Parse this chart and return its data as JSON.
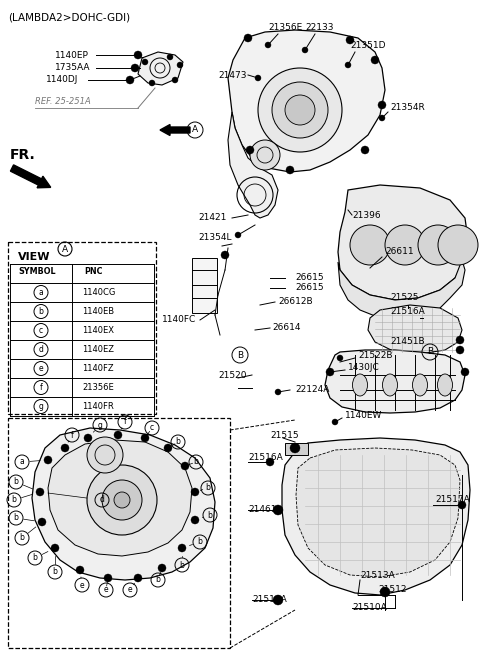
{
  "bg_color": "#ffffff",
  "line_color": "#000000",
  "gray_color": "#777777",
  "fig_width": 4.8,
  "fig_height": 6.6,
  "dpi": 100,
  "title": "(LAMBDA2>DOHC-GDI)",
  "view_rows": [
    [
      "a",
      "1140CG"
    ],
    [
      "b",
      "1140EB"
    ],
    [
      "c",
      "1140EX"
    ],
    [
      "d",
      "1140EZ"
    ],
    [
      "e",
      "1140FZ"
    ],
    [
      "f",
      "21356E"
    ],
    [
      "g",
      "1140FR"
    ]
  ]
}
